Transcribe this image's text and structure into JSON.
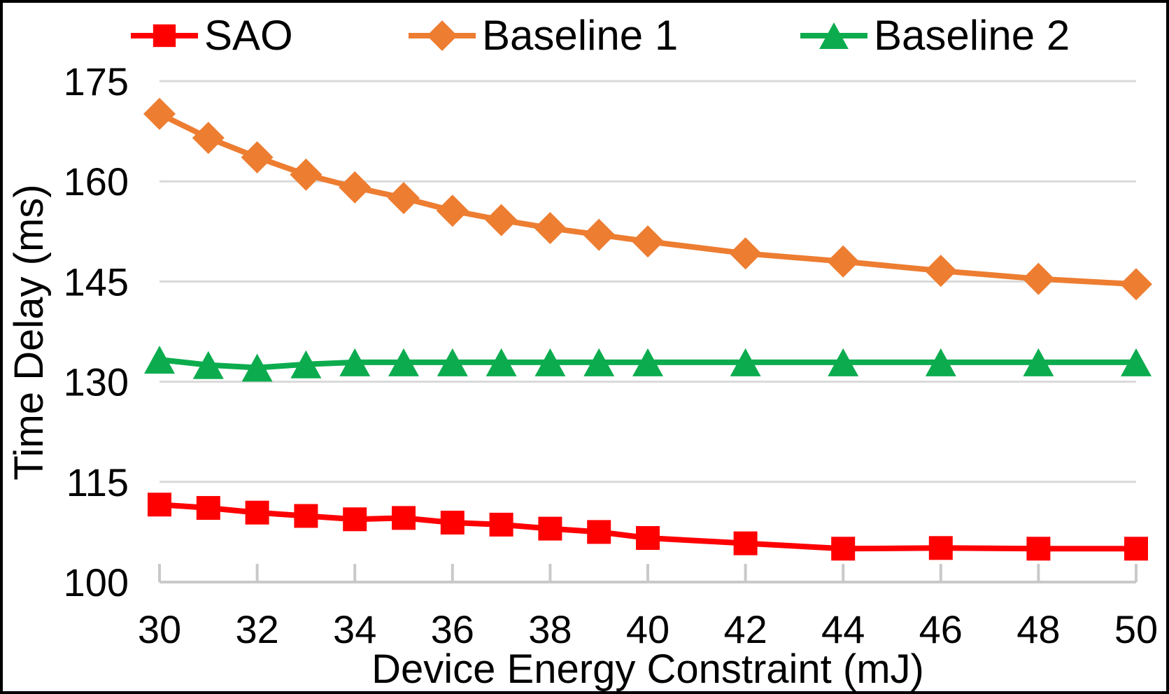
{
  "colors": {
    "background": "#ffffff",
    "frame_border": "#000000",
    "gridline": "#d9d9d9",
    "axis_line": "#c9c9c9",
    "text": "#000000",
    "sao_red": "#ff0000",
    "baseline1_orange": "#ed7d31",
    "baseline2_green": "#0cac4e"
  },
  "legend": {
    "position": "top",
    "items": [
      {
        "label": "SAO",
        "marker": "square"
      },
      {
        "label": "Baseline 1",
        "marker": "diamond"
      },
      {
        "label": "Baseline 2",
        "marker": "triangle"
      }
    ]
  },
  "chart_data": {
    "type": "line",
    "title": "",
    "xlabel": "Device Energy Constraint (mJ)",
    "ylabel": "Time Delay (ms)",
    "x": [
      30,
      31,
      32,
      33,
      34,
      35,
      36,
      37,
      38,
      39,
      40,
      42,
      44,
      46,
      48,
      50
    ],
    "xticks": [
      30,
      32,
      34,
      36,
      38,
      40,
      42,
      44,
      46,
      48,
      50
    ],
    "yticks": [
      100,
      115,
      130,
      145,
      160,
      175
    ],
    "xlim": [
      30,
      50
    ],
    "ylim": [
      100,
      175
    ],
    "grid": "horizontal",
    "legend_position": "top",
    "series": [
      {
        "name": "SAO",
        "color": "#ff0000",
        "marker": "square",
        "values": [
          111.6,
          111.1,
          110.4,
          109.9,
          109.4,
          109.6,
          108.9,
          108.6,
          108.0,
          107.5,
          106.6,
          105.8,
          105.0,
          105.1,
          105.0,
          105.0
        ]
      },
      {
        "name": "Baseline 1",
        "color": "#ed7d31",
        "marker": "diamond",
        "values": [
          170.1,
          166.5,
          163.6,
          161.0,
          159.1,
          157.5,
          155.6,
          154.2,
          153.0,
          152.0,
          151.0,
          149.2,
          148.0,
          146.6,
          145.4,
          144.6
        ]
      },
      {
        "name": "Baseline 2",
        "color": "#0cac4e",
        "marker": "triangle",
        "values": [
          133.3,
          132.5,
          132.1,
          132.6,
          132.9,
          132.9,
          132.9,
          132.9,
          132.9,
          132.9,
          132.9,
          132.9,
          132.9,
          132.9,
          132.9,
          132.9
        ]
      }
    ]
  }
}
